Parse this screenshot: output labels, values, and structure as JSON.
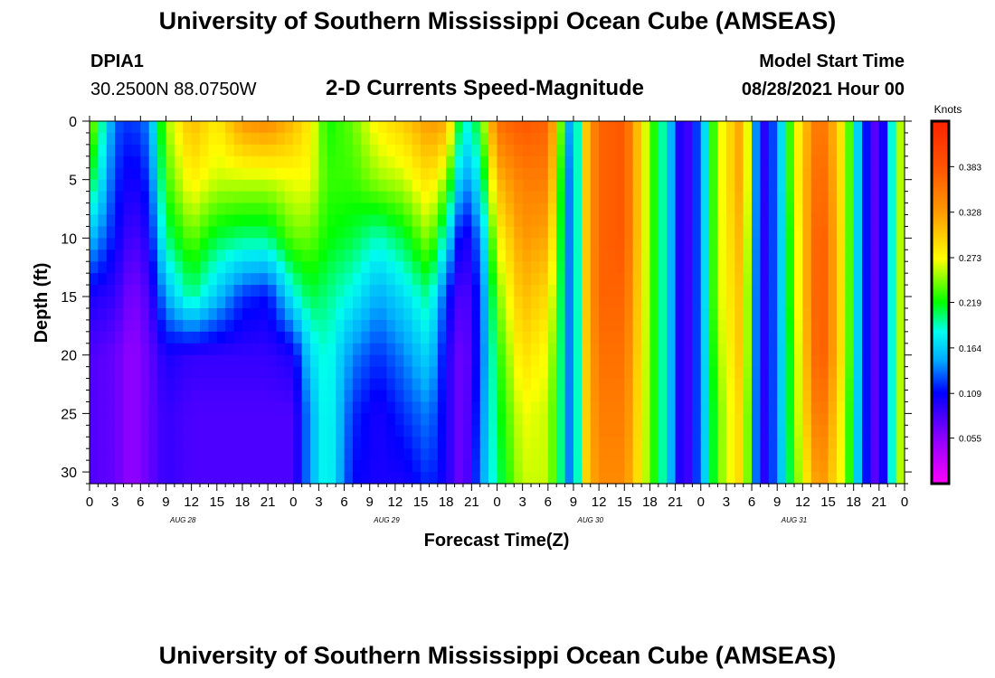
{
  "header": {
    "title": "University of Southern Mississippi Ocean Cube (AMSEAS)",
    "station_id": "DPIA1",
    "station_coords": "30.2500N  88.0750W",
    "plot_name": "2-D Currents Speed-Magnitude",
    "model_start_label": "Model Start Time",
    "model_start_value": "08/28/2021 Hour 00"
  },
  "footer": {
    "title": "University of Southern Mississippi Ocean Cube (AMSEAS)"
  },
  "chart_data": {
    "type": "heatmap",
    "title": "2-D Currents Speed-Magnitude",
    "xlabel": "Forecast Time(Z)",
    "ylabel": "Depth (ft)",
    "x_unit": "hours since 08/28/2021 00Z",
    "xlim": [
      0,
      96
    ],
    "ylim": [
      0,
      31
    ],
    "y_ticks": [
      0,
      5,
      10,
      15,
      20,
      25,
      30
    ],
    "x_tick_labels": [
      "0",
      "3",
      "6",
      "9",
      "12",
      "15",
      "18",
      "21",
      "0",
      "3",
      "6",
      "9",
      "12",
      "15",
      "18",
      "21",
      "0",
      "3",
      "6",
      "9",
      "12",
      "15",
      "18",
      "21",
      "0",
      "3",
      "6",
      "9",
      "12",
      "15",
      "18",
      "21",
      "0"
    ],
    "day_labels": [
      {
        "label": "AUG 28",
        "hour": 11
      },
      {
        "label": "AUG 29",
        "hour": 35
      },
      {
        "label": "AUG 30",
        "hour": 59
      },
      {
        "label": "AUG 31",
        "hour": 83
      }
    ],
    "colorbar": {
      "unit_label": "Knots",
      "min": 0.0,
      "max": 0.438,
      "tick_values": [
        0.055,
        0.109,
        0.164,
        0.219,
        0.273,
        0.328,
        0.383
      ],
      "tick_labels": [
        "0.055",
        "0.109",
        "0.164",
        "0.219",
        "0.273",
        "0.328",
        "0.383"
      ]
    },
    "speed_profiles": {
      "depths_ft": [
        0,
        5,
        10,
        15,
        20,
        25,
        31
      ],
      "profiles": [
        {
          "hour": 0,
          "speeds": [
            0.26,
            0.22,
            0.16,
            0.1,
            0.08,
            0.08,
            0.08
          ]
        },
        {
          "hour": 3,
          "speeds": [
            0.13,
            0.12,
            0.11,
            0.09,
            0.07,
            0.07,
            0.07
          ]
        },
        {
          "hour": 5,
          "speeds": [
            0.12,
            0.1,
            0.08,
            0.06,
            0.05,
            0.05,
            0.05
          ]
        },
        {
          "hour": 7,
          "speeds": [
            0.14,
            0.12,
            0.1,
            0.08,
            0.07,
            0.07,
            0.07
          ]
        },
        {
          "hour": 9,
          "speeds": [
            0.25,
            0.23,
            0.2,
            0.15,
            0.1,
            0.09,
            0.09
          ]
        },
        {
          "hour": 12,
          "speeds": [
            0.31,
            0.28,
            0.24,
            0.2,
            0.09,
            0.08,
            0.08
          ]
        },
        {
          "hour": 15,
          "speeds": [
            0.28,
            0.26,
            0.21,
            0.16,
            0.09,
            0.08,
            0.08
          ]
        },
        {
          "hour": 18,
          "speeds": [
            0.33,
            0.26,
            0.2,
            0.12,
            0.09,
            0.08,
            0.08
          ]
        },
        {
          "hour": 21,
          "speeds": [
            0.34,
            0.26,
            0.2,
            0.11,
            0.09,
            0.08,
            0.08
          ]
        },
        {
          "hour": 24,
          "speeds": [
            0.31,
            0.27,
            0.24,
            0.18,
            0.1,
            0.08,
            0.08
          ]
        },
        {
          "hour": 26,
          "speeds": [
            0.28,
            0.27,
            0.24,
            0.21,
            0.17,
            0.15,
            0.15
          ]
        },
        {
          "hour": 28,
          "speeds": [
            0.22,
            0.23,
            0.22,
            0.2,
            0.19,
            0.19,
            0.19
          ]
        },
        {
          "hour": 31,
          "speeds": [
            0.24,
            0.23,
            0.21,
            0.18,
            0.14,
            0.12,
            0.11
          ]
        },
        {
          "hour": 34,
          "speeds": [
            0.28,
            0.25,
            0.19,
            0.15,
            0.12,
            0.1,
            0.1
          ]
        },
        {
          "hour": 37,
          "speeds": [
            0.3,
            0.26,
            0.21,
            0.17,
            0.14,
            0.12,
            0.1
          ]
        },
        {
          "hour": 40,
          "speeds": [
            0.33,
            0.29,
            0.25,
            0.2,
            0.17,
            0.14,
            0.12
          ]
        },
        {
          "hour": 42,
          "speeds": [
            0.32,
            0.25,
            0.18,
            0.12,
            0.1,
            0.1,
            0.1
          ]
        },
        {
          "hour": 44,
          "speeds": [
            0.18,
            0.14,
            0.09,
            0.07,
            0.06,
            0.06,
            0.06
          ]
        },
        {
          "hour": 46,
          "speeds": [
            0.22,
            0.18,
            0.14,
            0.12,
            0.12,
            0.13,
            0.14
          ]
        },
        {
          "hour": 48,
          "speeds": [
            0.36,
            0.31,
            0.27,
            0.24,
            0.22,
            0.21,
            0.2
          ]
        },
        {
          "hour": 51,
          "speeds": [
            0.38,
            0.35,
            0.33,
            0.31,
            0.29,
            0.27,
            0.26
          ]
        },
        {
          "hour": 54,
          "speeds": [
            0.37,
            0.35,
            0.32,
            0.29,
            0.27,
            0.26,
            0.26
          ]
        },
        {
          "hour": 56,
          "speeds": [
            0.2,
            0.18,
            0.18,
            0.18,
            0.18,
            0.18,
            0.18
          ]
        },
        {
          "hour": 57,
          "speeds": [
            0.1,
            0.1,
            0.1,
            0.1,
            0.1,
            0.1,
            0.1
          ]
        },
        {
          "hour": 58,
          "speeds": [
            0.28,
            0.28,
            0.28,
            0.28,
            0.28,
            0.28,
            0.28
          ]
        },
        {
          "hour": 60,
          "speeds": [
            0.37,
            0.37,
            0.37,
            0.37,
            0.36,
            0.35,
            0.34
          ]
        },
        {
          "hour": 63,
          "speeds": [
            0.38,
            0.38,
            0.38,
            0.37,
            0.36,
            0.35,
            0.34
          ]
        },
        {
          "hour": 66,
          "speeds": [
            0.24,
            0.24,
            0.24,
            0.24,
            0.24,
            0.24,
            0.24
          ]
        },
        {
          "hour": 68,
          "speeds": [
            0.18,
            0.18,
            0.18,
            0.18,
            0.18,
            0.18,
            0.18
          ]
        },
        {
          "hour": 70,
          "speeds": [
            0.07,
            0.07,
            0.07,
            0.07,
            0.07,
            0.07,
            0.07
          ]
        },
        {
          "hour": 72,
          "speeds": [
            0.14,
            0.14,
            0.14,
            0.14,
            0.14,
            0.14,
            0.14
          ]
        },
        {
          "hour": 74,
          "speeds": [
            0.26,
            0.26,
            0.26,
            0.26,
            0.25,
            0.24,
            0.24
          ]
        },
        {
          "hour": 77,
          "speeds": [
            0.33,
            0.33,
            0.32,
            0.31,
            0.31,
            0.3,
            0.3
          ]
        },
        {
          "hour": 79,
          "speeds": [
            0.08,
            0.08,
            0.08,
            0.08,
            0.08,
            0.08,
            0.08
          ]
        },
        {
          "hour": 81,
          "speeds": [
            0.14,
            0.14,
            0.14,
            0.14,
            0.14,
            0.14,
            0.14
          ]
        },
        {
          "hour": 83,
          "speeds": [
            0.26,
            0.26,
            0.25,
            0.25,
            0.24,
            0.24,
            0.23
          ]
        },
        {
          "hour": 86,
          "speeds": [
            0.37,
            0.38,
            0.39,
            0.39,
            0.39,
            0.37,
            0.34
          ]
        },
        {
          "hour": 89,
          "speeds": [
            0.27,
            0.27,
            0.27,
            0.27,
            0.27,
            0.26,
            0.26
          ]
        },
        {
          "hour": 91,
          "speeds": [
            0.13,
            0.13,
            0.13,
            0.13,
            0.13,
            0.13,
            0.13
          ]
        },
        {
          "hour": 93,
          "speeds": [
            0.06,
            0.06,
            0.06,
            0.06,
            0.06,
            0.06,
            0.06
          ]
        },
        {
          "hour": 95,
          "speeds": [
            0.23,
            0.23,
            0.23,
            0.23,
            0.23,
            0.23,
            0.23
          ]
        },
        {
          "hour": 96,
          "speeds": [
            0.28,
            0.28,
            0.28,
            0.28,
            0.28,
            0.28,
            0.28
          ]
        }
      ]
    }
  }
}
